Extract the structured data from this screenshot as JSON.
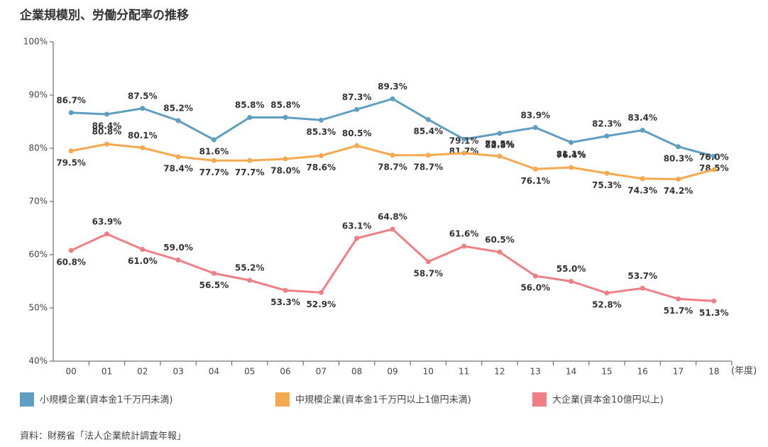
{
  "chart_data": {
    "type": "line",
    "title": "企業規模別、労働分配率の推移",
    "x_label": "(年度)",
    "source": "資料：財務省「法人企業統計調査年報」",
    "categories": [
      "00",
      "01",
      "02",
      "03",
      "04",
      "05",
      "06",
      "07",
      "08",
      "09",
      "10",
      "11",
      "12",
      "13",
      "14",
      "15",
      "16",
      "17",
      "18"
    ],
    "series": [
      {
        "name": "小規模企業(資本金1千万円未満)",
        "color": "#5f9ec1",
        "values": [
          86.7,
          86.4,
          87.5,
          85.2,
          81.6,
          85.8,
          85.8,
          85.3,
          87.3,
          89.3,
          85.4,
          81.7,
          82.8,
          83.9,
          81.1,
          82.3,
          83.4,
          80.3,
          78.5
        ],
        "value_labels": [
          "86.7%",
          "86.4%",
          "87.5%",
          "85.2%",
          "81.6%",
          "85.8%",
          "85.8%",
          "85.3%",
          "87.3%",
          "89.3%",
          "85.4%",
          "81.7%",
          "82.8%",
          "83.9%",
          "81.1%",
          "82.3%",
          "83.4%",
          "80.3%",
          "78.5%"
        ]
      },
      {
        "name": "中規模企業(資本金1千万円以上1億円未満)",
        "color": "#f5a94e",
        "values": [
          79.5,
          80.8,
          80.1,
          78.4,
          77.7,
          77.7,
          78.0,
          78.6,
          80.5,
          78.7,
          78.7,
          79.1,
          78.5,
          76.1,
          76.4,
          75.3,
          74.3,
          74.2,
          76.0
        ],
        "value_labels": [
          "79.5%",
          "80.8%",
          "80.1%",
          "78.4%",
          "77.7%",
          "77.7%",
          "78.0%",
          "78.6%",
          "80.5%",
          "78.7%",
          "78.7%",
          "79.1%",
          "78.5%",
          "76.1%",
          "76.4%",
          "75.3%",
          "74.3%",
          "74.2%",
          "76.0%"
        ]
      },
      {
        "name": "大企業(資本金10億円以上)",
        "color": "#ef7f85",
        "values": [
          60.8,
          63.9,
          61.0,
          59.0,
          56.5,
          55.2,
          53.3,
          52.9,
          63.1,
          64.8,
          58.7,
          61.6,
          60.5,
          56.0,
          55.0,
          52.8,
          53.7,
          51.7,
          51.3
        ],
        "value_labels": [
          "60.8%",
          "63.9%",
          "61.0%",
          "59.0%",
          "56.5%",
          "55.2%",
          "53.3%",
          "52.9%",
          "63.1%",
          "64.8%",
          "58.7%",
          "61.6%",
          "60.5%",
          "56.0%",
          "55.0%",
          "52.8%",
          "53.7%",
          "51.7%",
          "51.3%"
        ]
      }
    ],
    "ylim": [
      40,
      100
    ],
    "yticks": [
      {
        "value": 40,
        "label": "40%"
      },
      {
        "value": 50,
        "label": "50%"
      },
      {
        "value": 60,
        "label": "60%"
      },
      {
        "value": 70,
        "label": "70%"
      },
      {
        "value": 80,
        "label": "80%"
      },
      {
        "value": 90,
        "label": "90%"
      },
      {
        "value": 100,
        "label": "100%"
      }
    ]
  }
}
